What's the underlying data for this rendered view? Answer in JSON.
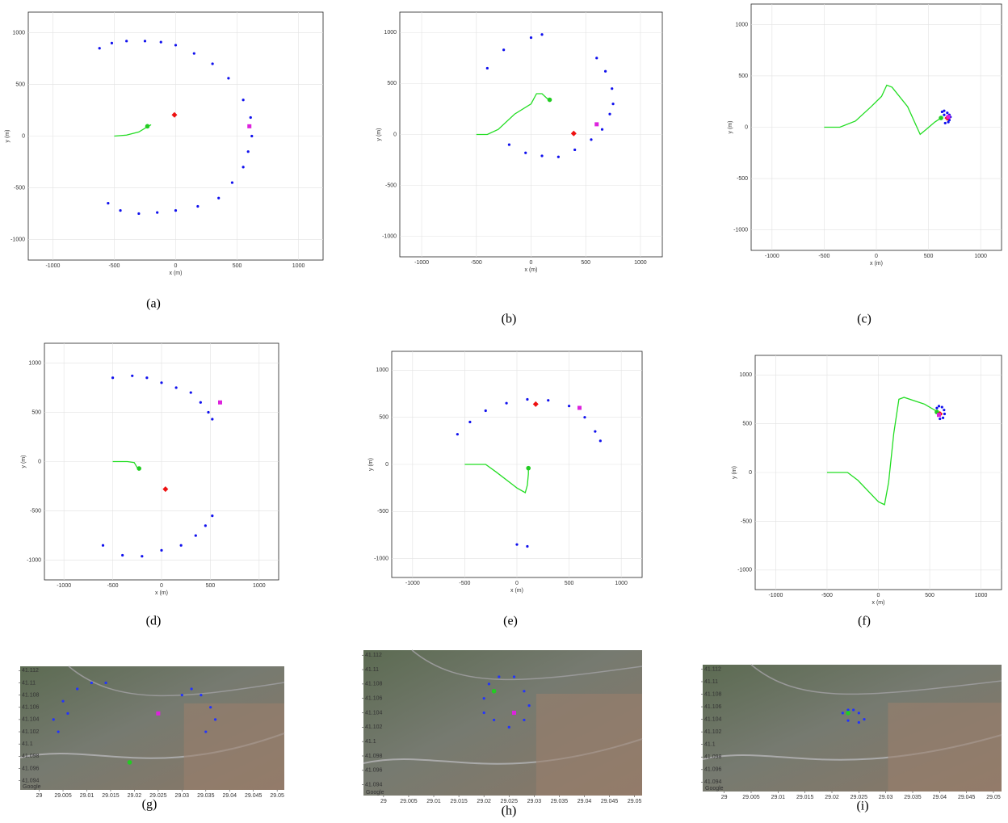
{
  "chart_data": [
    {
      "type": "scatter",
      "caption": "(a)",
      "xlabel": "x (m)",
      "ylabel": "y (m)",
      "grid": true,
      "xlim": [
        -1200,
        1200
      ],
      "ylim": [
        -1200,
        1200
      ],
      "xticks": [
        -1000,
        -500,
        0,
        500,
        1000
      ],
      "yticks": [
        -1000,
        -500,
        0,
        500,
        1000
      ],
      "series": [
        {
          "marker": "dot",
          "color": "#1010ee",
          "x": [
            -620,
            -520,
            -400,
            -250,
            -120,
            0,
            150,
            300,
            430,
            550,
            610,
            620,
            590,
            550,
            460,
            350,
            180,
            0,
            -150,
            -300,
            -450,
            -550
          ],
          "y": [
            850,
            900,
            920,
            920,
            910,
            880,
            800,
            700,
            560,
            350,
            180,
            0,
            -150,
            -300,
            -450,
            -600,
            -680,
            -720,
            -740,
            -750,
            -720,
            -650
          ]
        },
        {
          "marker": "line",
          "color": "#22dd22",
          "x": [
            -500,
            -400,
            -300,
            -230,
            -200
          ],
          "y": [
            0,
            10,
            40,
            90,
            110
          ]
        },
        {
          "marker": "circle",
          "color": "#22cc22",
          "x": [
            -230
          ],
          "y": [
            95
          ]
        },
        {
          "marker": "diamond",
          "color": "#ee1111",
          "x": [
            -10
          ],
          "y": [
            205
          ]
        },
        {
          "marker": "square",
          "color": "#dd22dd",
          "x": [
            600
          ],
          "y": [
            95
          ]
        }
      ]
    },
    {
      "type": "scatter",
      "caption": "(b)",
      "xlabel": "x (m)",
      "ylabel": "y (m)",
      "grid": true,
      "xlim": [
        -1200,
        1200
      ],
      "ylim": [
        -1200,
        1200
      ],
      "xticks": [
        -1000,
        -500,
        0,
        500,
        1000
      ],
      "yticks": [
        -1000,
        -500,
        0,
        500,
        1000
      ],
      "series": [
        {
          "marker": "dot",
          "color": "#1010ee",
          "x": [
            -400,
            -250,
            0,
            100,
            600,
            680,
            740,
            750,
            720,
            650,
            550,
            400,
            250,
            100,
            -50,
            -200
          ],
          "y": [
            650,
            830,
            950,
            980,
            750,
            620,
            450,
            300,
            200,
            50,
            -50,
            -150,
            -220,
            -210,
            -180,
            -100
          ]
        },
        {
          "marker": "line",
          "color": "#22dd22",
          "x": [
            -500,
            -400,
            -300,
            -150,
            0,
            50,
            100,
            150,
            170
          ],
          "y": [
            0,
            0,
            50,
            200,
            300,
            400,
            400,
            350,
            350
          ]
        },
        {
          "marker": "circle",
          "color": "#22cc22",
          "x": [
            170
          ],
          "y": [
            340
          ]
        },
        {
          "marker": "diamond",
          "color": "#ee1111",
          "x": [
            390
          ],
          "y": [
            10
          ]
        },
        {
          "marker": "square",
          "color": "#dd22dd",
          "x": [
            600
          ],
          "y": [
            100
          ]
        }
      ]
    },
    {
      "type": "scatter",
      "caption": "(c)",
      "xlabel": "x (m)",
      "ylabel": "y (m)",
      "grid": true,
      "xlim": [
        -1200,
        1200
      ],
      "ylim": [
        -1200,
        1200
      ],
      "xticks": [
        -1000,
        -500,
        0,
        500,
        1000
      ],
      "yticks": [
        -1000,
        -500,
        0,
        500,
        1000
      ],
      "series": [
        {
          "marker": "dot",
          "color": "#1010ee",
          "x": [
            630,
            650,
            680,
            700,
            710,
            700,
            690,
            660,
            650
          ],
          "y": [
            150,
            160,
            140,
            120,
            100,
            70,
            50,
            40,
            120
          ]
        },
        {
          "marker": "line",
          "color": "#22dd22",
          "x": [
            -500,
            -350,
            -200,
            -50,
            50,
            100,
            150,
            300,
            380,
            420,
            480,
            560,
            620
          ],
          "y": [
            0,
            0,
            60,
            200,
            300,
            410,
            390,
            200,
            20,
            -70,
            -20,
            50,
            90
          ]
        },
        {
          "marker": "circle",
          "color": "#22cc22",
          "x": [
            620
          ],
          "y": [
            90
          ]
        },
        {
          "marker": "diamond",
          "color": "#ee1111",
          "x": [
            680
          ],
          "y": [
            90
          ]
        },
        {
          "marker": "square",
          "color": "#dd22dd",
          "x": [
            690
          ],
          "y": [
            100
          ]
        }
      ]
    },
    {
      "type": "scatter",
      "caption": "(d)",
      "xlabel": "x (m)",
      "ylabel": "y (m)",
      "grid": true,
      "xlim": [
        -1200,
        1200
      ],
      "ylim": [
        -1200,
        1200
      ],
      "xticks": [
        -1000,
        -500,
        0,
        500,
        1000
      ],
      "yticks": [
        -1000,
        -500,
        0,
        500,
        1000
      ],
      "series": [
        {
          "marker": "dot",
          "color": "#1010ee",
          "x": [
            -500,
            -300,
            -150,
            0,
            150,
            300,
            400,
            480,
            520,
            -600,
            -400,
            -200,
            0,
            200,
            350,
            450,
            520
          ],
          "y": [
            850,
            870,
            850,
            800,
            750,
            700,
            600,
            500,
            430,
            -850,
            -950,
            -960,
            -900,
            -850,
            -750,
            -650,
            -550
          ]
        },
        {
          "marker": "line",
          "color": "#22dd22",
          "x": [
            -500,
            -350,
            -280,
            -250,
            -230
          ],
          "y": [
            0,
            0,
            -10,
            -60,
            -90
          ]
        },
        {
          "marker": "circle",
          "color": "#22cc22",
          "x": [
            -230
          ],
          "y": [
            -70
          ]
        },
        {
          "marker": "diamond",
          "color": "#ee1111",
          "x": [
            40
          ],
          "y": [
            -280
          ]
        },
        {
          "marker": "square",
          "color": "#dd22dd",
          "x": [
            600
          ],
          "y": [
            600
          ]
        }
      ]
    },
    {
      "type": "scatter",
      "caption": "(e)",
      "xlabel": "x (m)",
      "ylabel": "y (m)",
      "grid": true,
      "xlim": [
        -1200,
        1200
      ],
      "ylim": [
        -1200,
        1200
      ],
      "xticks": [
        -1000,
        -500,
        0,
        500,
        1000
      ],
      "yticks": [
        -1000,
        -500,
        0,
        500,
        1000
      ],
      "series": [
        {
          "marker": "dot",
          "color": "#1010ee",
          "x": [
            -570,
            -450,
            -300,
            -100,
            100,
            300,
            500,
            650,
            750,
            800,
            0,
            100
          ],
          "y": [
            320,
            450,
            570,
            650,
            690,
            680,
            620,
            500,
            350,
            250,
            -850,
            -870
          ]
        },
        {
          "marker": "line",
          "color": "#22dd22",
          "x": [
            -500,
            -300,
            -200,
            0,
            80,
            100,
            110,
            110
          ],
          "y": [
            0,
            0,
            -80,
            -250,
            -300,
            -220,
            -100,
            -40
          ]
        },
        {
          "marker": "circle",
          "color": "#22cc22",
          "x": [
            110
          ],
          "y": [
            -40
          ]
        },
        {
          "marker": "diamond",
          "color": "#ee1111",
          "x": [
            180
          ],
          "y": [
            640
          ]
        },
        {
          "marker": "square",
          "color": "#dd22dd",
          "x": [
            600
          ],
          "y": [
            600
          ]
        }
      ]
    },
    {
      "type": "scatter",
      "caption": "(f)",
      "xlabel": "x (m)",
      "ylabel": "y (m)",
      "grid": true,
      "xlim": [
        -1200,
        1200
      ],
      "ylim": [
        -1200,
        1200
      ],
      "xticks": [
        -1000,
        -500,
        0,
        500,
        1000
      ],
      "yticks": [
        -1000,
        -500,
        0,
        500,
        1000
      ],
      "series": [
        {
          "marker": "dot",
          "color": "#1010ee",
          "x": [
            570,
            590,
            620,
            640,
            645,
            630,
            600
          ],
          "y": [
            660,
            680,
            670,
            640,
            600,
            560,
            550
          ]
        },
        {
          "marker": "line",
          "color": "#22dd22",
          "x": [
            -500,
            -300,
            -200,
            0,
            60,
            100,
            150,
            200,
            250,
            450,
            580
          ],
          "y": [
            0,
            0,
            -80,
            -300,
            -330,
            -100,
            400,
            750,
            770,
            700,
            620
          ]
        },
        {
          "marker": "circle",
          "color": "#22cc22",
          "x": [
            570
          ],
          "y": [
            620
          ]
        },
        {
          "marker": "diamond",
          "color": "#ee1111",
          "x": [
            600
          ],
          "y": [
            600
          ]
        },
        {
          "marker": "square",
          "color": "#dd22dd",
          "x": [
            590
          ],
          "y": [
            590
          ]
        }
      ]
    },
    {
      "type": "map",
      "caption": "(g)",
      "attribution": "Google",
      "xlim": [
        28.996,
        29.0515
      ],
      "ylim": [
        41.0925,
        41.1127
      ],
      "xticks": [
        29,
        29.005,
        29.01,
        29.015,
        29.02,
        29.025,
        29.03,
        29.035,
        29.04,
        29.045,
        29.05
      ],
      "yticks": [
        41.094,
        41.096,
        41.098,
        41.1,
        41.102,
        41.104,
        41.106,
        41.108,
        41.11,
        41.112
      ],
      "series": [
        {
          "marker": "dot",
          "color": "#2233ff",
          "x": [
            29.003,
            29.005,
            29.008,
            29.011,
            29.014,
            29.004,
            29.006,
            29.03,
            29.032,
            29.034,
            29.036,
            29.037,
            29.035
          ],
          "y": [
            41.104,
            41.107,
            41.109,
            41.11,
            41.11,
            41.102,
            41.105,
            41.108,
            41.109,
            41.108,
            41.106,
            41.104,
            41.102
          ]
        },
        {
          "marker": "circle",
          "color": "#22cc22",
          "x": [
            29.019
          ],
          "y": [
            41.097
          ]
        },
        {
          "marker": "square",
          "color": "#dd22dd",
          "x": [
            29.025
          ],
          "y": [
            41.105
          ]
        }
      ]
    },
    {
      "type": "map",
      "caption": "(h)",
      "attribution": "Google",
      "xlim": [
        28.996,
        29.0515
      ],
      "ylim": [
        41.0925,
        41.1127
      ],
      "xticks": [
        29,
        29.005,
        29.01,
        29.015,
        29.02,
        29.025,
        29.03,
        29.035,
        29.04,
        29.045,
        29.05
      ],
      "yticks": [
        41.094,
        41.096,
        41.098,
        41.1,
        41.102,
        41.104,
        41.106,
        41.108,
        41.11,
        41.112
      ],
      "series": [
        {
          "marker": "dot",
          "color": "#2233ff",
          "x": [
            29.02,
            29.021,
            29.023,
            29.026,
            29.028,
            29.029,
            29.028,
            29.025,
            29.022,
            29.02
          ],
          "y": [
            41.106,
            41.108,
            41.109,
            41.109,
            41.107,
            41.105,
            41.103,
            41.102,
            41.103,
            41.104
          ]
        },
        {
          "marker": "circle",
          "color": "#22cc22",
          "x": [
            29.022
          ],
          "y": [
            41.107
          ]
        },
        {
          "marker": "square",
          "color": "#dd22dd",
          "x": [
            29.026
          ],
          "y": [
            41.104
          ]
        }
      ]
    },
    {
      "type": "map",
      "caption": "(i)",
      "attribution": "Google",
      "xlim": [
        28.996,
        29.0515
      ],
      "ylim": [
        41.0925,
        41.1127
      ],
      "xticks": [
        29,
        29.005,
        29.01,
        29.015,
        29.02,
        29.025,
        29.03,
        29.035,
        29.04,
        29.045,
        29.05
      ],
      "yticks": [
        41.094,
        41.096,
        41.098,
        41.1,
        41.102,
        41.104,
        41.106,
        41.108,
        41.11,
        41.112
      ],
      "series": [
        {
          "marker": "dot",
          "color": "#2233ff",
          "x": [
            29.022,
            29.023,
            29.024,
            29.025,
            29.026,
            29.025,
            29.023
          ],
          "y": [
            41.105,
            41.1055,
            41.1055,
            41.105,
            41.104,
            41.1035,
            41.1038
          ]
        },
        {
          "marker": "circle",
          "color": "#22cc22",
          "x": [
            29.023
          ],
          "y": [
            41.105
          ]
        }
      ]
    }
  ]
}
